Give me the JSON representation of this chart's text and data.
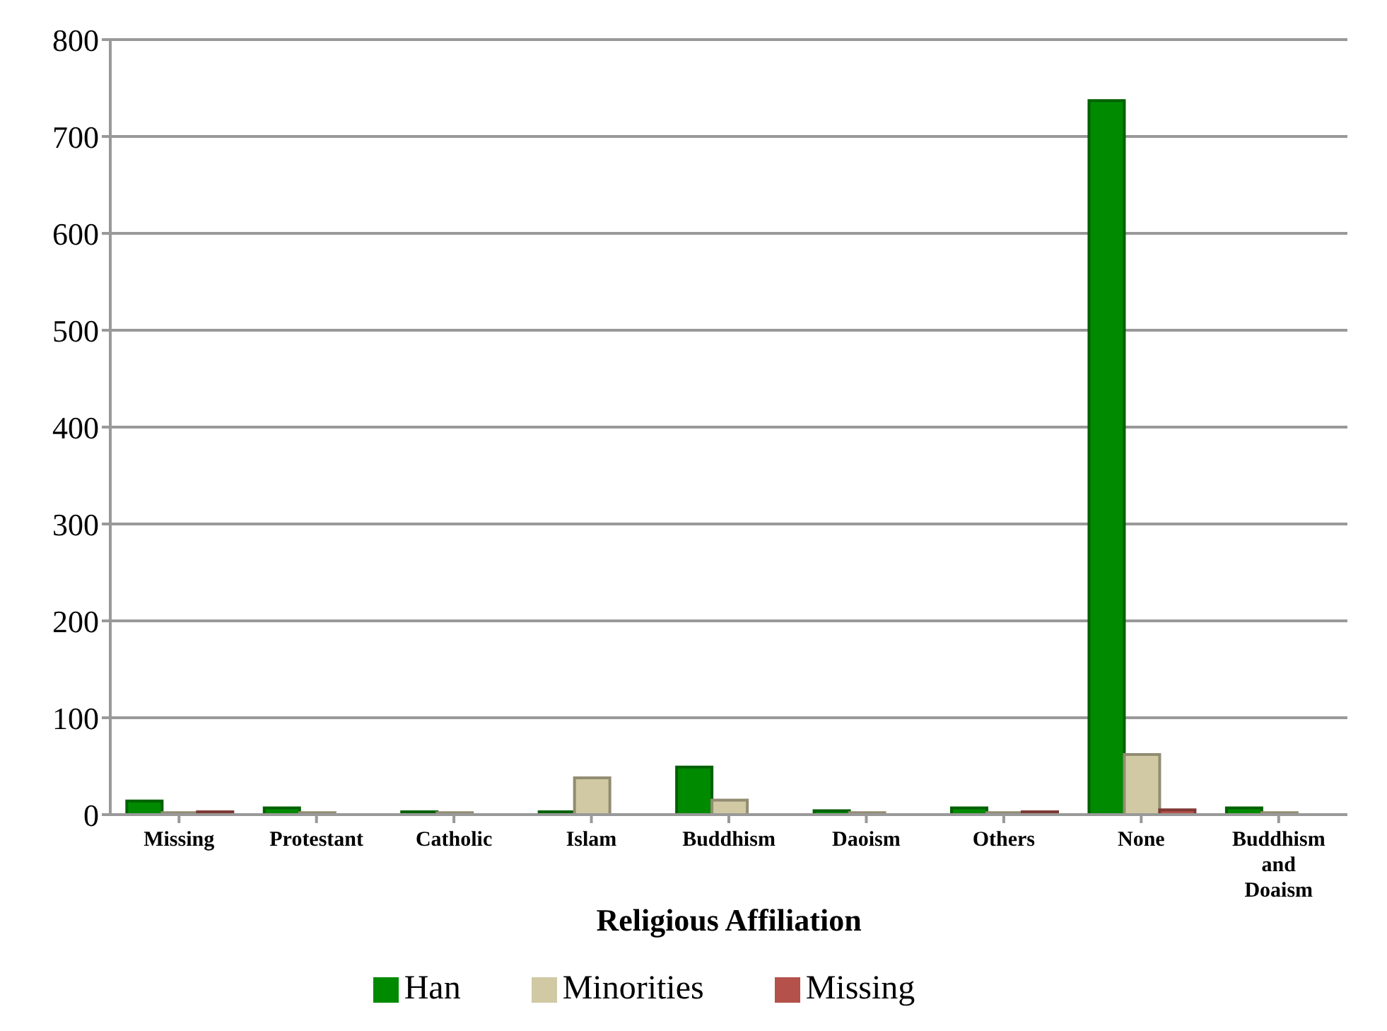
{
  "chart_data": {
    "type": "bar",
    "xlabel": "Religious Affiliation",
    "categories": [
      "Missing",
      "Protestant",
      "Catholic",
      "Islam",
      "Buddhism",
      "Daoism",
      "Others",
      "None",
      "Buddhism and Doaism"
    ],
    "series": [
      {
        "name": "Han",
        "color": "#008a00",
        "values": [
          14,
          7,
          3,
          3,
          49,
          4,
          7,
          737,
          7
        ]
      },
      {
        "name": "Minorities",
        "color": "#d0c9a3",
        "values": [
          2,
          2,
          2,
          38,
          15,
          2,
          2,
          62,
          2
        ]
      },
      {
        "name": "Missing",
        "color": "#b5514b",
        "values": [
          3,
          0,
          0,
          0,
          0,
          0,
          3,
          5,
          0
        ]
      }
    ],
    "ylim": [
      0,
      800
    ],
    "yticks": [
      0,
      100,
      200,
      300,
      400,
      500,
      600,
      700,
      800
    ],
    "grid": "y",
    "legend": "bottom"
  }
}
